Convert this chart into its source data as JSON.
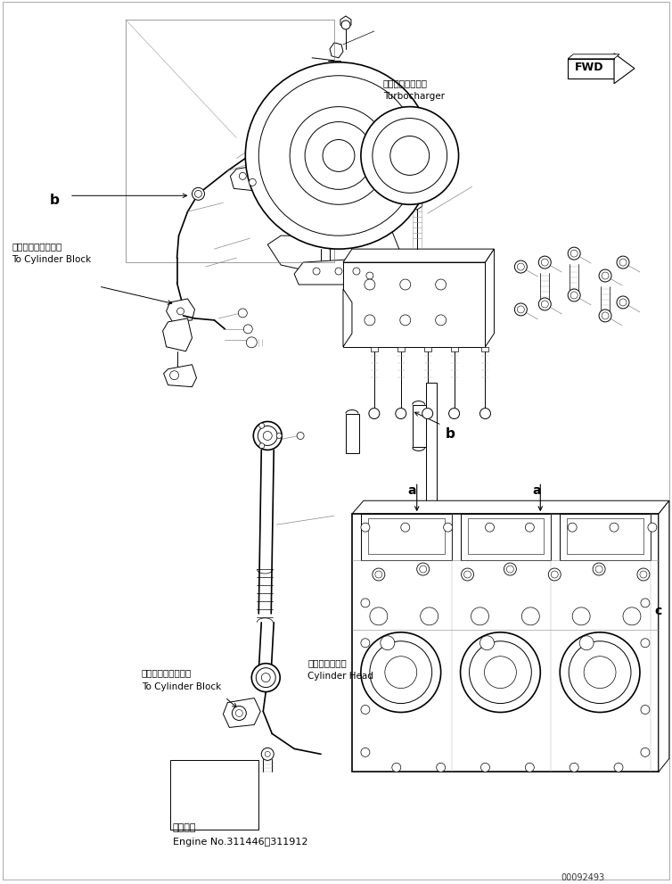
{
  "background_color": "#ffffff",
  "figure_width": 7.54,
  "figure_height": 9.91,
  "dpi": 100,
  "labels": {
    "turbocharger_jp": "ターボチャージャ",
    "turbocharger_en": "Turbocharger",
    "cylinder_block_jp1": "シリンダブロックへ",
    "cylinder_block_en1": "To Cylinder Block",
    "cylinder_block_jp2": "シリンダブロックへ",
    "cylinder_block_en2": "To Cylinder Block",
    "cylinder_head_jp": "シリンダヘッド",
    "cylinder_head_en": "Cylinder Head",
    "engine_no_jp": "適用号機",
    "engine_no_en": "Engine No.311446～311912",
    "part_number": "00092493",
    "label_a1": "a",
    "label_a2": "a",
    "label_b1": "b",
    "label_b2": "b",
    "label_c": "c",
    "fwd": "FWD"
  },
  "lc": "#000000",
  "lw": 0.7,
  "lw_thick": 1.2,
  "lw_thin": 0.4
}
